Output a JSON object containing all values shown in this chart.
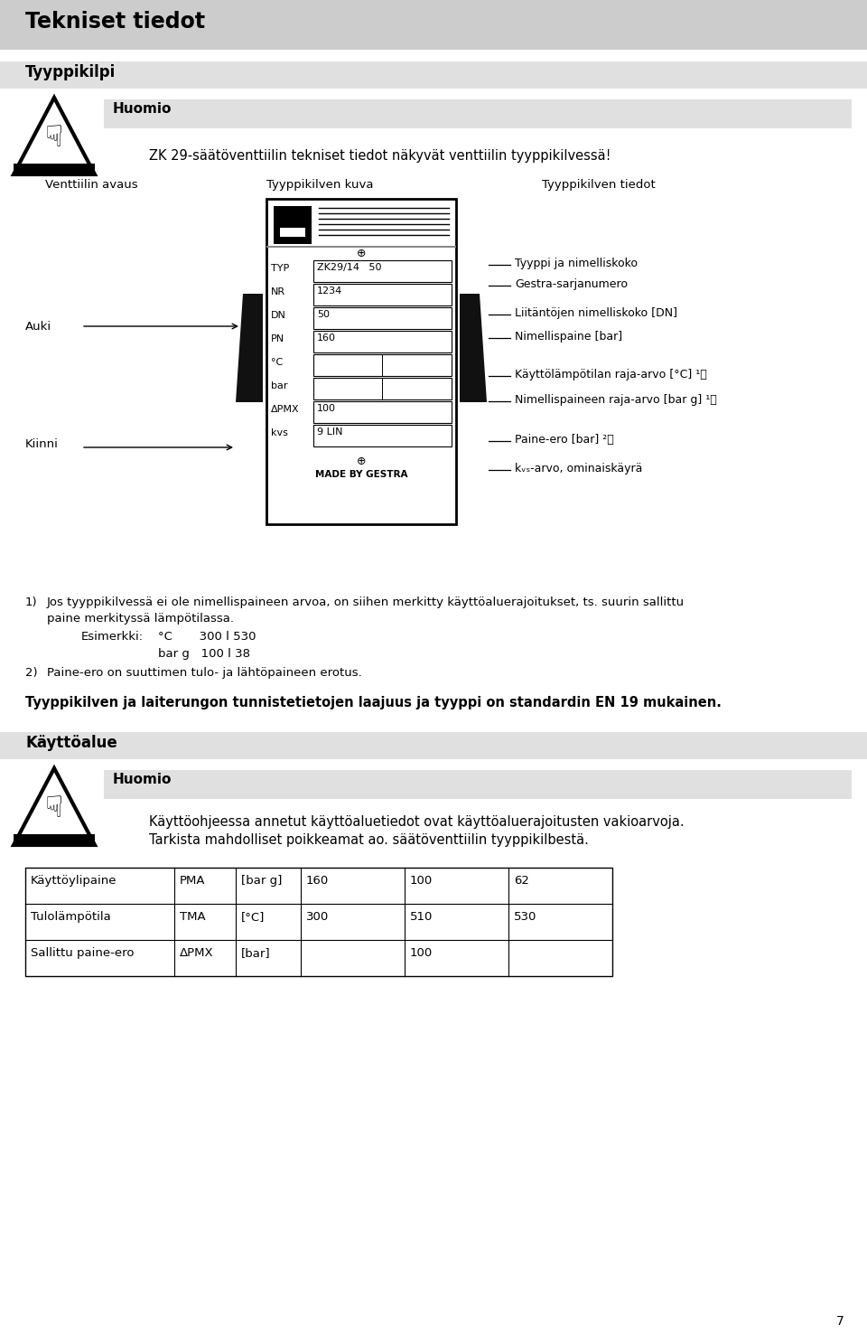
{
  "page_bg": "#ffffff",
  "header_bg": "#cccccc",
  "section_bg": "#e0e0e0",
  "header_text": "Tekniset tiedot",
  "section1_title": "Tyyppikilpi",
  "huomio_label": "Huomio",
  "huomio_text": "ZK 29-säätöventtiilin tekniset tiedot näkyvät venttiilin tyyppikilvessä!",
  "col1_label": "Venttiilin avaus",
  "col2_label": "Tyyppikilven kuva",
  "col3_label": "Tyyppikilven tiedot",
  "auki_label": "Auki",
  "kiinni_label": "Kiinni",
  "plate_fields": [
    {
      "label": "TYP",
      "value": "ZK29/14   50",
      "has_box": true
    },
    {
      "label": "NR",
      "value": "1234",
      "has_box": true
    },
    {
      "label": "DN",
      "value": "50",
      "has_box": true
    },
    {
      "label": "PN",
      "value": "160",
      "has_box": true
    },
    {
      "label": "°C",
      "value": "",
      "has_box": true
    },
    {
      "label": "bar",
      "value": "",
      "has_box": true
    },
    {
      "label": "ΔPMX",
      "value": "100",
      "has_box": true
    },
    {
      "label": "kvs",
      "value": "9 LIN",
      "has_box": true
    }
  ],
  "plate_bottom": "MADE BY GESTRA",
  "right_labels": [
    "Tyyppi ja nimelliskoko",
    "Gestra-sarjanumero",
    "Liitäntöjen nimelliskoko [DN]",
    "Nimellispaine [bar]",
    "Käyttölämpötilan raja-arvo [°C] ¹⧠",
    "Nimellispaineen raja-arvo [bar g] ¹⧠",
    "Paine-ero [bar] ²⧠",
    "kᵥₛ-arvo, ominaiskäyrä"
  ],
  "footnote1_sup": "1)",
  "footnote1_text": " Jos tyyppikilvessä ei ole nimellispaineen arvoa, on siihen merkitty käyttöaluerajoitukset, ts. suurin sallittu",
  "footnote1b": "paine merkityssä lämpötilassa.",
  "footnote_example_label": "Esimerkki:",
  "footnote_example_c": "°C       300 l 530",
  "footnote_example_bar": "bar g   100 l 38",
  "footnote2_sup": "2)",
  "footnote2_text": " Paine-ero on suuttimen tulo- ja lähtöpaineen erotus.",
  "standard_text": "Tyyppikilven ja laiterungon tunnistetietojen laajuus ja tyyppi on standardin EN 19 mukainen.",
  "section2_title": "Käyttöalue",
  "huomio2_text1": "Käyttöohjeessa annetut käyttöaluetiedot ovat käyttöaluerajoitusten vakioarvoja.",
  "huomio2_text2": "Tarkista mahdolliset poikkeamat ao. säätöventtiilin tyyppikilbestä.",
  "table_rows": [
    [
      "Käyttöylipaine",
      "PMA",
      "[bar g]",
      "160",
      "100",
      "62"
    ],
    [
      "Tulolämpötila",
      "TMA",
      "[°C]",
      "300",
      "510",
      "530"
    ],
    [
      "Sallittu paine-ero",
      "ΔPMX",
      "[bar]",
      "",
      "100",
      ""
    ]
  ],
  "page_number": "7"
}
